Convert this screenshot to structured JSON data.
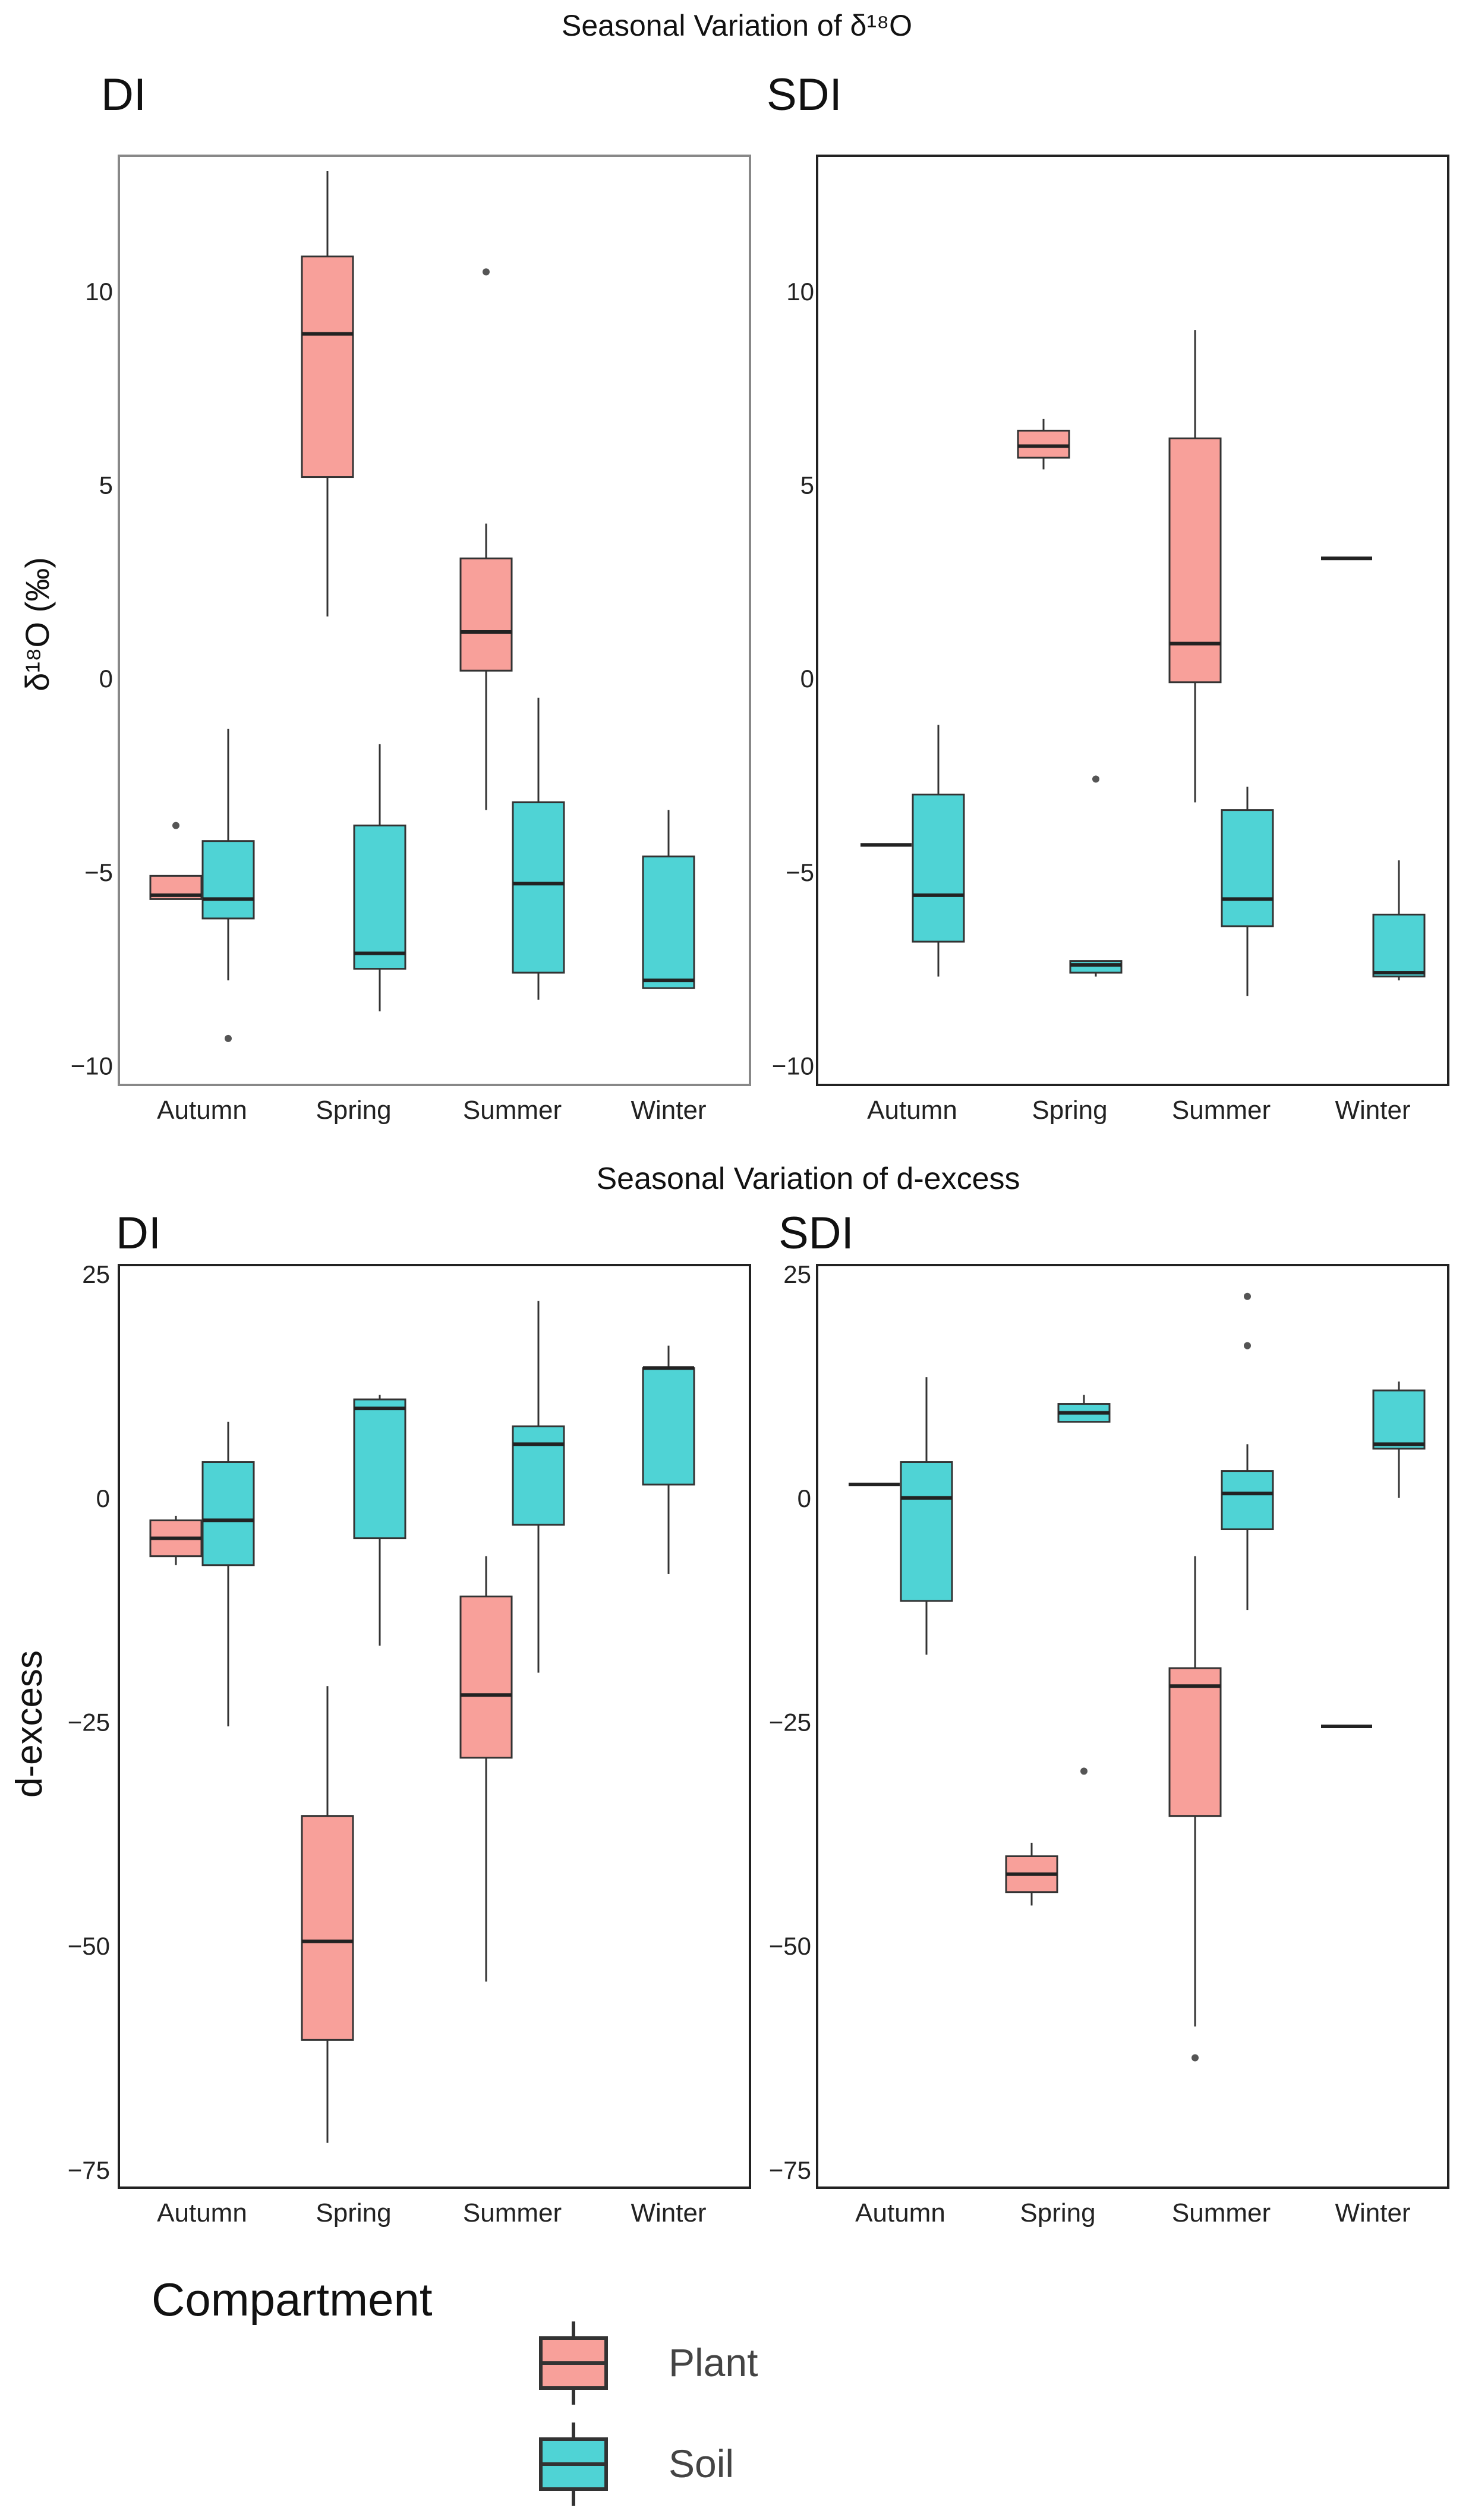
{
  "figure": {
    "top_title": "Seasonal Variation of δ¹⁸O",
    "bottom_title": "Seasonal Variation of d-excess"
  },
  "colors": {
    "plant": "#F8A09A",
    "soil": "#4FD3D5",
    "stroke": "#333333",
    "frame": "#222222"
  },
  "legend": {
    "title": "Compartment",
    "items": [
      {
        "key": "plant",
        "label": "Plant"
      },
      {
        "key": "soil",
        "label": "Soil"
      }
    ]
  },
  "chart_data": [
    {
      "type": "box",
      "panel": "DI",
      "title": "DI",
      "ylabel": "δ¹⁸O (‰)",
      "ylim": [
        -10.5,
        13.5
      ],
      "yticks": [
        -10,
        -5,
        0,
        5,
        10
      ],
      "categories": [
        "Autumn",
        "Spring",
        "Summer",
        "Winter"
      ],
      "boxes": [
        {
          "category": "Autumn",
          "group": "plant",
          "min": -5.7,
          "q1": -5.7,
          "median": -5.6,
          "q3": -5.1,
          "max": -5.1,
          "outliers": [
            -3.8
          ]
        },
        {
          "category": "Autumn",
          "group": "soil",
          "min": -7.8,
          "q1": -6.2,
          "median": -5.7,
          "q3": -4.2,
          "max": -1.3,
          "outliers": [
            -9.3
          ]
        },
        {
          "category": "Spring",
          "group": "plant",
          "min": 1.6,
          "q1": 5.2,
          "median": 8.9,
          "q3": 10.9,
          "max": 13.1,
          "outliers": []
        },
        {
          "category": "Spring",
          "group": "soil",
          "min": -8.6,
          "q1": -7.5,
          "median": -7.1,
          "q3": -3.8,
          "max": -1.7,
          "outliers": []
        },
        {
          "category": "Summer",
          "group": "plant",
          "min": -3.4,
          "q1": 0.2,
          "median": 1.2,
          "q3": 3.1,
          "max": 4.0,
          "outliers": [
            10.5
          ]
        },
        {
          "category": "Summer",
          "group": "soil",
          "min": -8.3,
          "q1": -7.6,
          "median": -5.3,
          "q3": -3.2,
          "max": -0.5,
          "outliers": []
        },
        {
          "category": "Winter",
          "group": "soil",
          "min": -8.0,
          "q1": -8.0,
          "median": -7.8,
          "q3": -4.6,
          "max": -3.4,
          "outliers": []
        }
      ]
    },
    {
      "type": "box",
      "panel": "SDI",
      "title": "SDI",
      "ylabel": "",
      "ylim": [
        -10.5,
        13.5
      ],
      "yticks": [
        -10,
        -5,
        0,
        5,
        10
      ],
      "categories": [
        "Autumn",
        "Spring",
        "Summer",
        "Winter"
      ],
      "boxes": [
        {
          "category": "Autumn",
          "group": "plant",
          "min": -4.3,
          "q1": -4.3,
          "median": -4.3,
          "q3": -4.3,
          "max": -4.3,
          "outliers": []
        },
        {
          "category": "Autumn",
          "group": "soil",
          "min": -7.7,
          "q1": -6.8,
          "median": -5.6,
          "q3": -3.0,
          "max": -1.2,
          "outliers": []
        },
        {
          "category": "Spring",
          "group": "plant",
          "min": 5.4,
          "q1": 5.7,
          "median": 6.0,
          "q3": 6.4,
          "max": 6.7,
          "outliers": []
        },
        {
          "category": "Spring",
          "group": "soil",
          "min": -7.7,
          "q1": -7.6,
          "median": -7.4,
          "q3": -7.3,
          "max": -7.3,
          "outliers": [
            -2.6
          ]
        },
        {
          "category": "Summer",
          "group": "plant",
          "min": -3.2,
          "q1": -0.1,
          "median": 0.9,
          "q3": 6.2,
          "max": 9.0,
          "outliers": []
        },
        {
          "category": "Summer",
          "group": "soil",
          "min": -8.2,
          "q1": -6.4,
          "median": -5.7,
          "q3": -3.4,
          "max": -2.8,
          "outliers": []
        },
        {
          "category": "Winter",
          "group": "plant",
          "min": 3.1,
          "q1": 3.1,
          "median": 3.1,
          "q3": 3.1,
          "max": 3.1,
          "outliers": []
        },
        {
          "category": "Winter",
          "group": "soil",
          "min": -7.8,
          "q1": -7.7,
          "median": -7.6,
          "q3": -6.1,
          "max": -4.7,
          "outliers": []
        }
      ]
    },
    {
      "type": "box",
      "panel": "DI",
      "title": "DI",
      "ylabel": "d-excess",
      "ylim": [
        -77,
        26
      ],
      "yticks": [
        -75,
        -50,
        -25,
        0,
        25
      ],
      "categories": [
        "Autumn",
        "Spring",
        "Summer",
        "Winter"
      ],
      "boxes": [
        {
          "category": "Autumn",
          "group": "plant",
          "min": -7.5,
          "q1": -6.5,
          "median": -4.5,
          "q3": -2.5,
          "max": -2.0,
          "outliers": []
        },
        {
          "category": "Autumn",
          "group": "soil",
          "min": -25.5,
          "q1": -7.5,
          "median": -2.5,
          "q3": 4.0,
          "max": 8.5,
          "outliers": []
        },
        {
          "category": "Spring",
          "group": "plant",
          "min": -72.0,
          "q1": -60.5,
          "median": -49.5,
          "q3": -35.5,
          "max": -21.0,
          "outliers": []
        },
        {
          "category": "Spring",
          "group": "soil",
          "min": -16.5,
          "q1": -4.5,
          "median": 10.0,
          "q3": 11.0,
          "max": 11.5,
          "outliers": []
        },
        {
          "category": "Summer",
          "group": "plant",
          "min": -54.0,
          "q1": -29.0,
          "median": -22.0,
          "q3": -11.0,
          "max": -6.5,
          "outliers": []
        },
        {
          "category": "Summer",
          "group": "soil",
          "min": -19.5,
          "q1": -3.0,
          "median": 6.0,
          "q3": 8.0,
          "max": 22.0,
          "outliers": []
        },
        {
          "category": "Winter",
          "group": "soil",
          "min": -8.5,
          "q1": 1.5,
          "median": 14.5,
          "q3": 14.5,
          "max": 17.0,
          "outliers": []
        }
      ]
    },
    {
      "type": "box",
      "panel": "SDI",
      "title": "SDI",
      "ylabel": "",
      "ylim": [
        -77,
        26
      ],
      "yticks": [
        -75,
        -50,
        -25,
        0,
        25
      ],
      "categories": [
        "Autumn",
        "Spring",
        "Summer",
        "Winter"
      ],
      "boxes": [
        {
          "category": "Autumn",
          "group": "plant",
          "min": 1.5,
          "q1": 1.5,
          "median": 1.5,
          "q3": 1.5,
          "max": 1.5,
          "outliers": []
        },
        {
          "category": "Autumn",
          "group": "soil",
          "min": -17.5,
          "q1": -11.5,
          "median": 0.0,
          "q3": 4.0,
          "max": 13.5,
          "outliers": []
        },
        {
          "category": "Spring",
          "group": "plant",
          "min": -45.5,
          "q1": -44.0,
          "median": -42.0,
          "q3": -40.0,
          "max": -38.5,
          "outliers": []
        },
        {
          "category": "Spring",
          "group": "soil",
          "min": 8.5,
          "q1": 8.5,
          "median": 9.5,
          "q3": 10.5,
          "max": 11.5,
          "outliers": [
            -30.5
          ]
        },
        {
          "category": "Summer",
          "group": "plant",
          "min": -59.0,
          "q1": -35.5,
          "median": -21.0,
          "q3": -19.0,
          "max": -6.5,
          "outliers": [
            -62.5
          ]
        },
        {
          "category": "Summer",
          "group": "soil",
          "min": -12.5,
          "q1": -3.5,
          "median": 0.5,
          "q3": 3.0,
          "max": 6.0,
          "outliers": [
            17.0,
            22.5
          ]
        },
        {
          "category": "Winter",
          "group": "plant",
          "min": -25.5,
          "q1": -25.5,
          "median": -25.5,
          "q3": -25.5,
          "max": -25.5,
          "outliers": []
        },
        {
          "category": "Winter",
          "group": "soil",
          "min": 0.0,
          "q1": 5.5,
          "median": 6.0,
          "q3": 12.0,
          "max": 13.0,
          "outliers": []
        }
      ]
    }
  ]
}
